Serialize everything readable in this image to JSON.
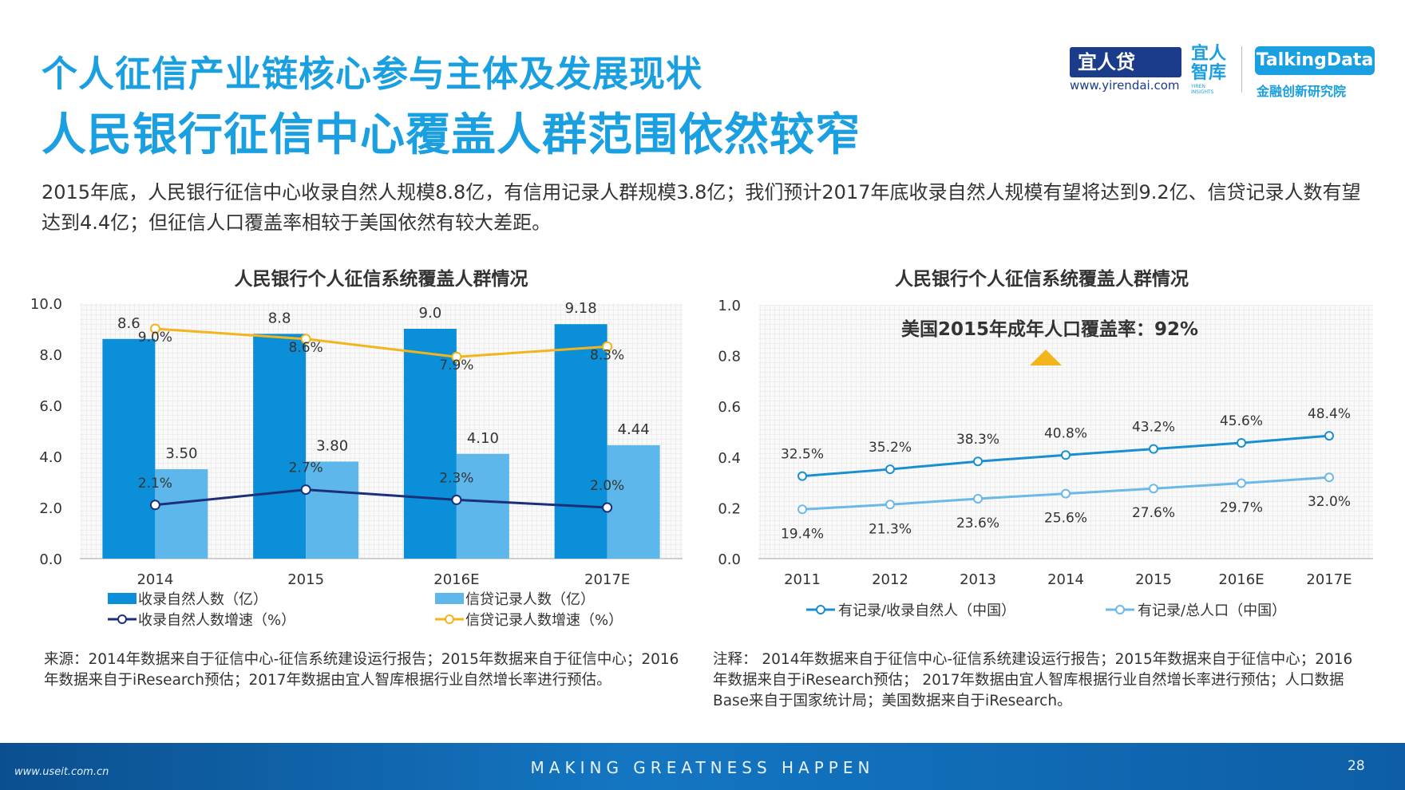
{
  "header": {
    "title1": "个人征信产业链核心参与主体及发展现状",
    "title2": "人民银行征信中心覆盖人群范围依然较窄"
  },
  "logos": {
    "yirendai_name": "宜人贷",
    "yirendai_url": "www.yirendai.com",
    "zhiku_name": "宜人智库",
    "zhiku_sub": "YIREN INSIGHTS",
    "talkingdata_name": "TalkingData",
    "talkingdata_sub": "金融创新研究院"
  },
  "intro": "2015年底，人民银行征信中心收录自然人规模8.8亿，有信用记录人群规模3.8亿；我们预计2017年底收录自然人规模有望将达到9.2亿、信贷记录人数有望达到4.4亿；但征信人口覆盖率相较于美国依然有较大差距。",
  "chart_data": [
    {
      "type": "bar",
      "title": "人民银行个人征信系统覆盖人群情况",
      "categories": [
        "2014",
        "2015",
        "2016E",
        "2017E"
      ],
      "ylim": [
        0,
        10
      ],
      "yticks": [
        "0.0",
        "2.0",
        "4.0",
        "6.0",
        "8.0",
        "10.0"
      ],
      "grid": true,
      "legend_position": "bottom",
      "series": [
        {
          "name": "收录自然人数（亿）",
          "kind": "bar",
          "color": "#0a8fd8",
          "values": [
            8.6,
            8.8,
            9.0,
            9.18
          ],
          "labels": [
            "8.6",
            "8.8",
            "9.0",
            "9.18"
          ]
        },
        {
          "name": "信贷记录人数（亿）",
          "kind": "bar",
          "color": "#5db7ea",
          "values": [
            3.5,
            3.8,
            4.1,
            4.44
          ],
          "labels": [
            "3.50",
            "3.80",
            "4.10",
            "4.44"
          ]
        },
        {
          "name": "收录自然人数增速（%）",
          "kind": "line",
          "color": "#1b2f7a",
          "values": [
            2.1,
            2.7,
            2.3,
            2.0
          ],
          "labels": [
            "2.1%",
            "2.7%",
            "2.3%",
            "2.0%"
          ]
        },
        {
          "name": "信贷记录人数增速（%）",
          "kind": "line",
          "color": "#f2b51b",
          "values": [
            9.0,
            8.6,
            7.9,
            8.3
          ],
          "labels": [
            "9.0%",
            "8.6%",
            "7.9%",
            "8.3%"
          ]
        }
      ]
    },
    {
      "type": "line",
      "title": "人民银行个人征信系统覆盖人群情况",
      "categories": [
        "2011",
        "2012",
        "2013",
        "2014",
        "2015",
        "2016E",
        "2017E"
      ],
      "ylim": [
        0,
        1.0
      ],
      "yticks": [
        "0.0",
        "0.2",
        "0.4",
        "0.6",
        "0.8",
        "1.0"
      ],
      "grid": true,
      "legend_position": "bottom",
      "annotation": "美国2015年成年人口覆盖率：92%",
      "series": [
        {
          "name": "有记录/收录自然人（中国）",
          "color": "#1a8fd0",
          "values": [
            0.325,
            0.352,
            0.383,
            0.408,
            0.432,
            0.456,
            0.484
          ],
          "labels": [
            "32.5%",
            "35.2%",
            "38.3%",
            "40.8%",
            "43.2%",
            "45.6%",
            "48.4%"
          ]
        },
        {
          "name": "有记录/总人口（中国）",
          "color": "#6cb8e6",
          "values": [
            0.194,
            0.213,
            0.236,
            0.256,
            0.276,
            0.297,
            0.32
          ],
          "labels": [
            "19.4%",
            "21.3%",
            "23.6%",
            "25.6%",
            "27.6%",
            "29.7%",
            "32.0%"
          ]
        }
      ]
    }
  ],
  "notes": {
    "left": "来源：2014年数据来自于征信中心-征信系统建设运行报告；2015年数据来自于征信中心；2016年数据来自于iResearch预估；2017年数据由宜人智库根据行业自然增长率进行预估。",
    "right": "注释： 2014年数据来自于征信中心-征信系统建设运行报告；2015年数据来自于征信中心；2016年数据来自于iResearch预估； 2017年数据由宜人智库根据行业自然增长率进行预估；人口数据Base来自于国家统计局；美国数据来自于iResearch。"
  },
  "footer": {
    "slogan": "MAKING GREATNESS HAPPEN",
    "site": "www.useit.com.cn",
    "page": "28"
  }
}
